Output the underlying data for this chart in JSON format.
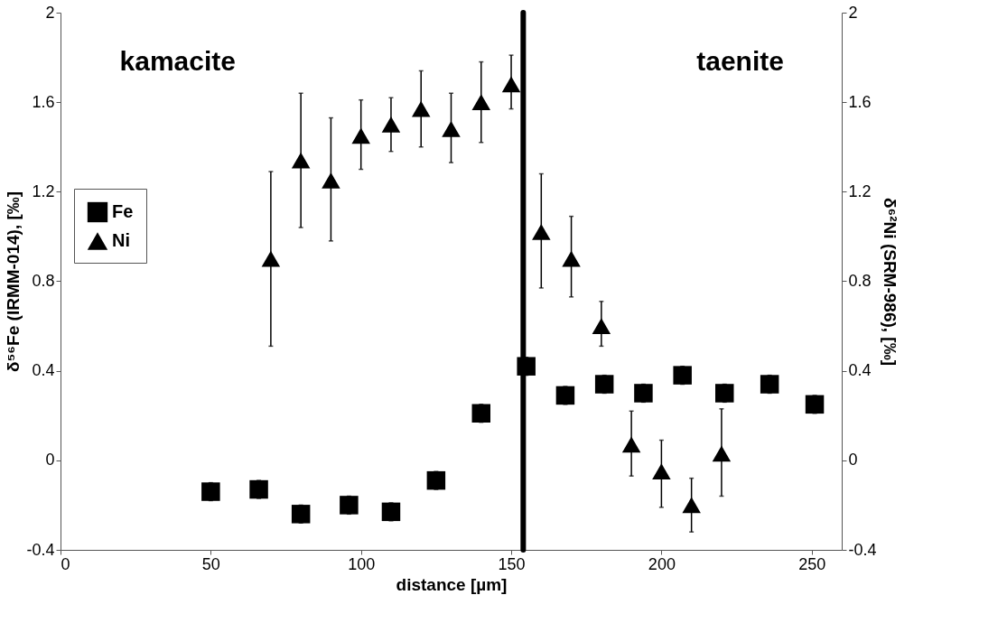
{
  "chart_data": {
    "type": "scatter",
    "xlabel": "distance [µm]",
    "ylabel": "δ⁵⁶Fe (IRMM-014), [‰]",
    "y2label": "δ⁶²Ni (SRM-986), [‰]",
    "xlim": [
      0,
      260
    ],
    "xticks": [
      0,
      50,
      100,
      150,
      200,
      250
    ],
    "ylim": [
      -0.4,
      2
    ],
    "yticks": [
      -0.4,
      0,
      0.4,
      0.8,
      1.2,
      1.6,
      2
    ],
    "y2lim": [
      -0.4,
      2
    ],
    "y2ticks": [
      -0.4,
      0,
      0.4,
      0.8,
      1.2,
      1.6,
      2
    ],
    "grid": false,
    "legend": "left",
    "series": [
      {
        "name": "Fe",
        "color": "#000000",
        "marker": "square",
        "x": [
          50,
          66,
          80,
          96,
          110,
          125,
          140,
          155,
          168,
          181,
          194,
          207,
          221,
          236,
          251
        ],
        "values": [
          -0.14,
          -0.13,
          -0.24,
          -0.2,
          -0.23,
          -0.09,
          0.21,
          0.42,
          0.29,
          0.34,
          0.3,
          0.38,
          0.3,
          0.34,
          0.25
        ],
        "errors": [
          0.04,
          0.04,
          0.04,
          0.04,
          0.04,
          0.04,
          0.04,
          0.04,
          0.04,
          0.04,
          0.04,
          0.04,
          0.04,
          0.04,
          0.04
        ]
      },
      {
        "name": "Ni",
        "color": "#000000",
        "marker": "triangle",
        "axis": "y2",
        "x": [
          70,
          80,
          90,
          100,
          110,
          120,
          130,
          140,
          150,
          160,
          170,
          180,
          190,
          200,
          210,
          220
        ],
        "values": [
          0.9,
          1.34,
          1.25,
          1.45,
          1.5,
          1.57,
          1.48,
          1.6,
          1.68,
          1.02,
          0.9,
          0.6,
          0.07,
          -0.05,
          -0.2,
          0.03
        ],
        "errors": [
          [
            0.51,
            1.29
          ],
          [
            1.04,
            1.64
          ],
          [
            0.98,
            1.53
          ],
          [
            1.3,
            1.61
          ],
          [
            1.38,
            1.62
          ],
          [
            1.4,
            1.74
          ],
          [
            1.33,
            1.64
          ],
          [
            1.42,
            1.78
          ],
          [
            1.57,
            1.81
          ],
          [
            0.77,
            1.28
          ],
          [
            0.73,
            1.09
          ],
          [
            0.51,
            0.71
          ],
          [
            -0.07,
            0.22
          ],
          [
            -0.21,
            0.09
          ],
          [
            -0.32,
            -0.08
          ],
          [
            -0.16,
            0.23
          ]
        ]
      }
    ],
    "ref_lines": [
      {
        "axis": "x",
        "value": 154,
        "color": "#000000"
      }
    ],
    "annotations": [
      "kamacite",
      "taenite"
    ]
  }
}
